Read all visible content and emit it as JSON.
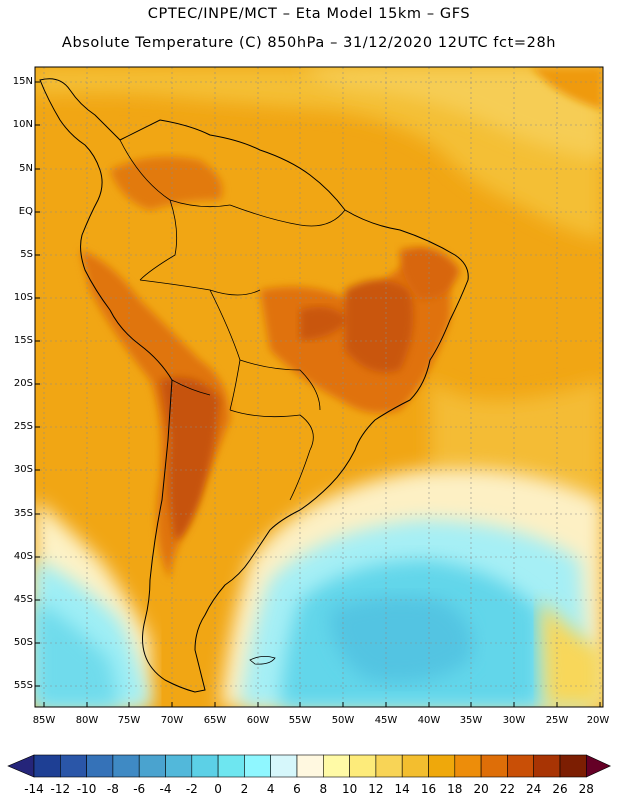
{
  "title_line1": "CPTEC/INPE/MCT –  Eta Model 15km – GFS",
  "title_line2": "Absolute Temperature (C) 850hPa – 31/12/2020 12UTC fct=28h",
  "map": {
    "lat_labels": [
      "15N",
      "10N",
      "5N",
      "EQ",
      "5S",
      "10S",
      "15S",
      "20S",
      "25S",
      "30S",
      "35S",
      "40S",
      "45S",
      "50S",
      "55S"
    ],
    "lon_labels": [
      "85W",
      "80W",
      "75W",
      "70W",
      "65W",
      "60W",
      "55W",
      "50W",
      "45W",
      "40W",
      "35W",
      "30W",
      "25W",
      "20W"
    ],
    "regions": {
      "land": "south-america",
      "ocean": "pacific-and-atlantic"
    }
  },
  "colorbar": {
    "labels": [
      "-14",
      "-12",
      "-10",
      "-8",
      "-6",
      "-4",
      "-2",
      "0",
      "2",
      "4",
      "6",
      "8",
      "10",
      "12",
      "14",
      "16",
      "18",
      "20",
      "22",
      "24",
      "26",
      "28"
    ],
    "colors": [
      "#1e3f94",
      "#2a56a8",
      "#3572b8",
      "#3f8ac4",
      "#4aa3cf",
      "#52b8da",
      "#5cd0e6",
      "#6ee6f0",
      "#8ff7ff",
      "#d6f7fb",
      "#fff8e0",
      "#fffaa6",
      "#fdeb7a",
      "#f8d456",
      "#f3be2f",
      "#efa80b",
      "#ed8d0a",
      "#de6e08",
      "#c94f06",
      "#a83404",
      "#7c1e02"
    ],
    "under_color": "#25257a",
    "over_color": "#650026"
  },
  "colors": {
    "warm": "#f1a30f",
    "hot": "#e1720c",
    "very_hot": "#c7530a",
    "mild": "#f4c23a",
    "pale": "#fdf0c4",
    "cyan": "#6fe0ee",
    "light_cyan": "#a8f0f5",
    "blue": "#55c2e0"
  }
}
